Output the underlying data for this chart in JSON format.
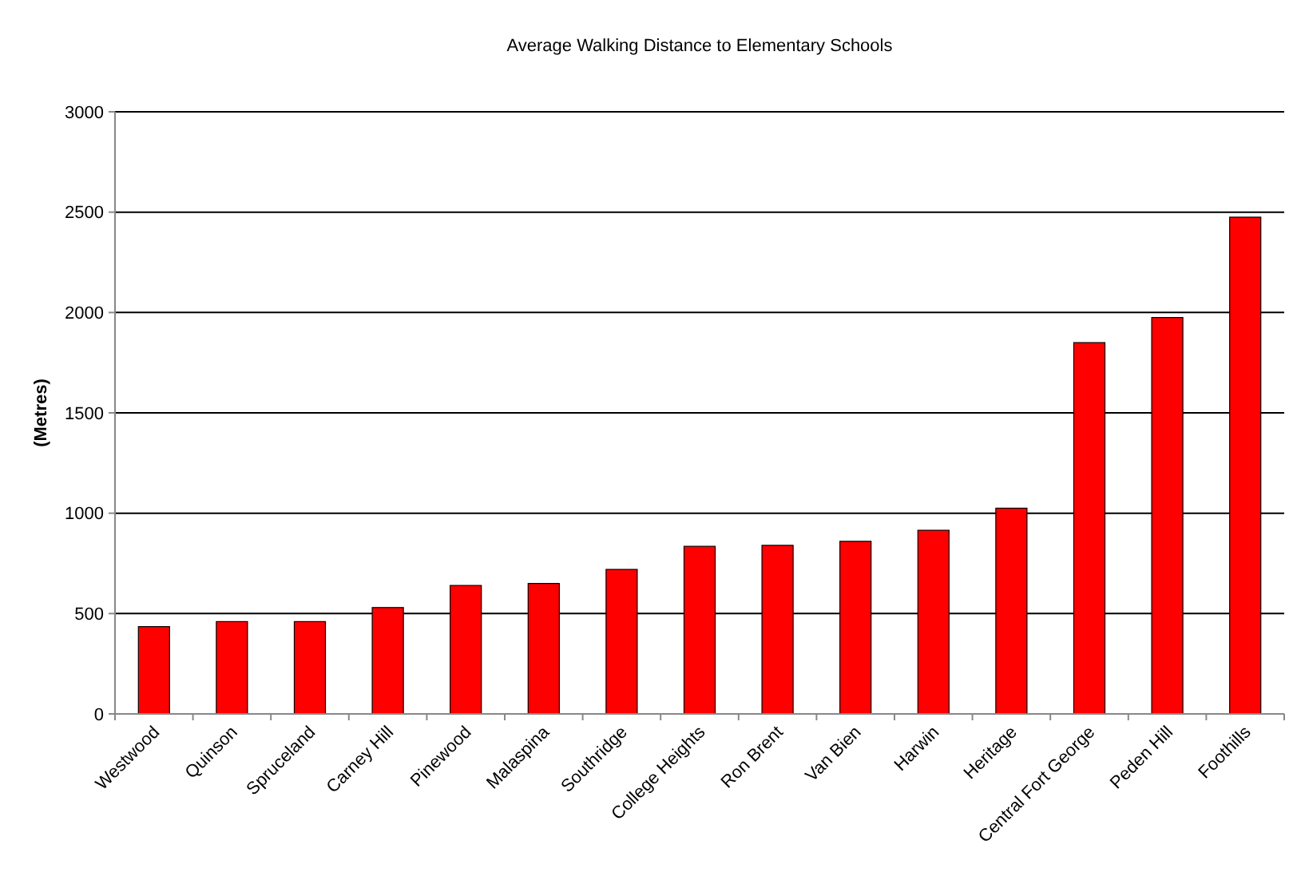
{
  "chart_data": {
    "type": "bar",
    "title": "Average Walking Distance to Elementary Schools",
    "ylabel": "(Metres)",
    "categories": [
      "Westwood",
      "Quinson",
      "Spruceland",
      "Carney Hill",
      "Pinewood",
      "Malaspina",
      "Southridge",
      "College Heights",
      "Ron Brent",
      "Van Bien",
      "Harwin",
      "Heritage",
      "Central Fort George",
      "Peden Hill",
      "Foothills"
    ],
    "values": [
      435,
      460,
      460,
      530,
      640,
      650,
      720,
      835,
      840,
      860,
      915,
      1025,
      1850,
      1975,
      2475
    ],
    "color": "#ff0000",
    "ylim": [
      0,
      3000
    ],
    "yticks": [
      0,
      500,
      1000,
      1500,
      2000,
      2500,
      3000
    ],
    "grid": "y"
  }
}
